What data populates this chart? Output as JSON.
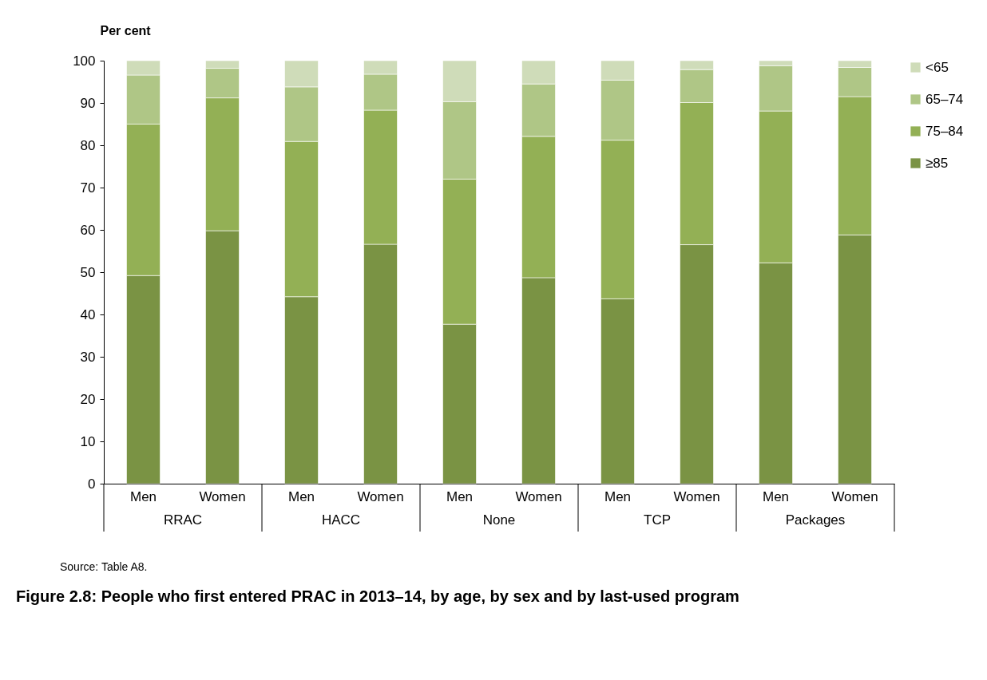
{
  "chart_data": {
    "type": "bar",
    "stacked": true,
    "title": "Figure 2.8: People who first entered PRAC in 2013–14, by age, by sex and by last-used program",
    "ylabel": "Per cent",
    "categories": [
      "Men",
      "Women",
      "Men",
      "Women",
      "Men",
      "Women",
      "Men",
      "Women",
      "Men",
      "Women"
    ],
    "series": [
      {
        "name": "≥85",
        "color": "#7a9344",
        "values": [
          49.2,
          59.8,
          44.2,
          56.6,
          37.7,
          48.7,
          43.7,
          56.5,
          52.2,
          58.8
        ]
      },
      {
        "name": "75–84",
        "color": "#93b055",
        "values": [
          35.8,
          31.4,
          36.7,
          31.7,
          34.3,
          33.4,
          37.5,
          33.6,
          35.9,
          32.7
        ]
      },
      {
        "name": "65–74",
        "color": "#afc686",
        "values": [
          11.6,
          7.0,
          12.9,
          8.5,
          18.3,
          12.4,
          14.2,
          7.8,
          10.7,
          6.9
        ]
      },
      {
        "name": "<65",
        "color": "#cfdcb9",
        "values": [
          3.4,
          1.8,
          6.2,
          3.2,
          9.7,
          5.5,
          4.6,
          2.1,
          1.2,
          1.6
        ]
      }
    ],
    "ylim": [
      0,
      100
    ],
    "yticks": [
      0,
      10,
      20,
      30,
      40,
      50,
      60,
      70,
      80,
      90,
      100
    ],
    "grid": false,
    "legend": "right",
    "annotations": [
      "RRAC",
      "HACC",
      "None",
      "TCP",
      "Packages",
      "Source: Table A8."
    ]
  }
}
